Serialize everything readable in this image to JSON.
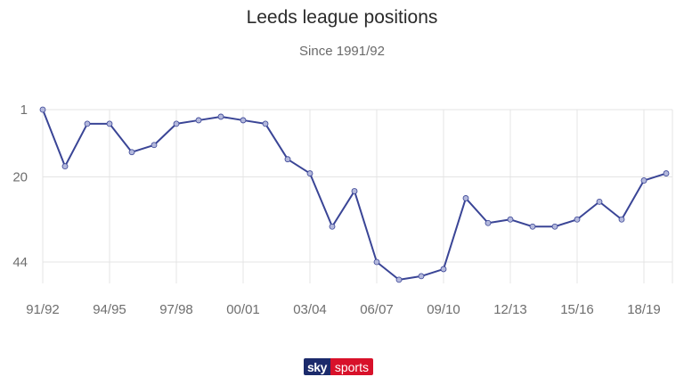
{
  "chart_data": {
    "type": "line",
    "title": "Leeds league positions",
    "subtitle": "Since 1991/92",
    "xlabel": "",
    "ylabel": "",
    "y_inverted": true,
    "ylim": [
      1,
      48
    ],
    "y_ticks": [
      1,
      20,
      44
    ],
    "x_tick_labels": [
      "91/92",
      "94/95",
      "97/98",
      "00/01",
      "03/04",
      "06/07",
      "09/10",
      "12/13",
      "15/16",
      "18/19"
    ],
    "x": [
      "91/92",
      "92/93",
      "93/94",
      "94/95",
      "95/96",
      "96/97",
      "97/98",
      "98/99",
      "99/00",
      "00/01",
      "01/02",
      "02/03",
      "03/04",
      "04/05",
      "05/06",
      "06/07",
      "07/08",
      "08/09",
      "09/10",
      "10/11",
      "11/12",
      "12/13",
      "13/14",
      "14/15",
      "15/16",
      "16/17",
      "17/18",
      "18/19",
      "19/20"
    ],
    "series": [
      {
        "values": [
          1,
          17,
          5,
          5,
          13,
          11,
          5,
          4,
          3,
          4,
          5,
          15,
          19,
          34,
          24,
          44,
          49,
          48,
          46,
          26,
          33,
          32,
          34,
          34,
          32,
          27,
          32,
          21,
          19
        ],
        "color": "#3a4596"
      }
    ],
    "grid": true,
    "legend": "none"
  },
  "logo": {
    "sky": "sky",
    "sports": "sports"
  }
}
